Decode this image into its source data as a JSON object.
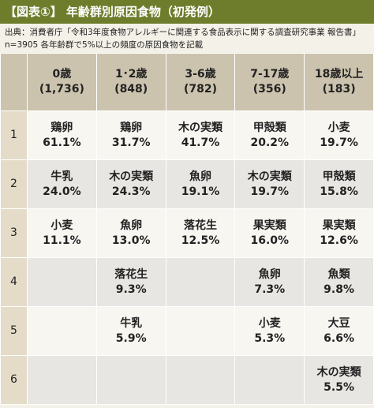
{
  "header": {
    "title": "【図表①】 年齢群別原因食物（初発例）",
    "source": [
      "出典：消費者庁「令和3年度食物アレルギーに関連する食品表示に関する調査研究事業 報告書」",
      "n=3905 各年齢群で5%以上の頻度の原因食物を記載"
    ]
  },
  "table": {
    "columns": [
      {
        "age": "0歳",
        "n": "(1,736)"
      },
      {
        "age": "1･2歳",
        "n": "(848)"
      },
      {
        "age": "3-6歳",
        "n": "(782)"
      },
      {
        "age": "7-17歳",
        "n": "(356)"
      },
      {
        "age": "18歳以上",
        "n": "(183)"
      }
    ],
    "rows": [
      {
        "rank": "1",
        "cells": [
          {
            "food": "鶏卵",
            "pct": "61.1%"
          },
          {
            "food": "鶏卵",
            "pct": "31.7%"
          },
          {
            "food": "木の実類",
            "pct": "41.7%"
          },
          {
            "food": "甲殻類",
            "pct": "20.2%"
          },
          {
            "food": "小麦",
            "pct": "19.7%"
          }
        ]
      },
      {
        "rank": "2",
        "cells": [
          {
            "food": "牛乳",
            "pct": "24.0%"
          },
          {
            "food": "木の実類",
            "pct": "24.3%"
          },
          {
            "food": "魚卵",
            "pct": "19.1%"
          },
          {
            "food": "木の実類",
            "pct": "19.7%"
          },
          {
            "food": "甲殻類",
            "pct": "15.8%"
          }
        ]
      },
      {
        "rank": "3",
        "cells": [
          {
            "food": "小麦",
            "pct": "11.1%"
          },
          {
            "food": "魚卵",
            "pct": "13.0%"
          },
          {
            "food": "落花生",
            "pct": "12.5%"
          },
          {
            "food": "果実類",
            "pct": "16.0%"
          },
          {
            "food": "果実類",
            "pct": "12.6%"
          }
        ]
      },
      {
        "rank": "4",
        "cells": [
          null,
          {
            "food": "落花生",
            "pct": "9.3%"
          },
          null,
          {
            "food": "魚卵",
            "pct": "7.3%"
          },
          {
            "food": "魚類",
            "pct": "9.8%"
          }
        ]
      },
      {
        "rank": "5",
        "cells": [
          null,
          {
            "food": "牛乳",
            "pct": "5.9%"
          },
          null,
          {
            "food": "小麦",
            "pct": "5.3%"
          },
          {
            "food": "大豆",
            "pct": "6.6%"
          }
        ]
      },
      {
        "rank": "6",
        "cells": [
          null,
          null,
          null,
          null,
          {
            "food": "木の実類",
            "pct": "5.5%"
          }
        ]
      }
    ]
  }
}
